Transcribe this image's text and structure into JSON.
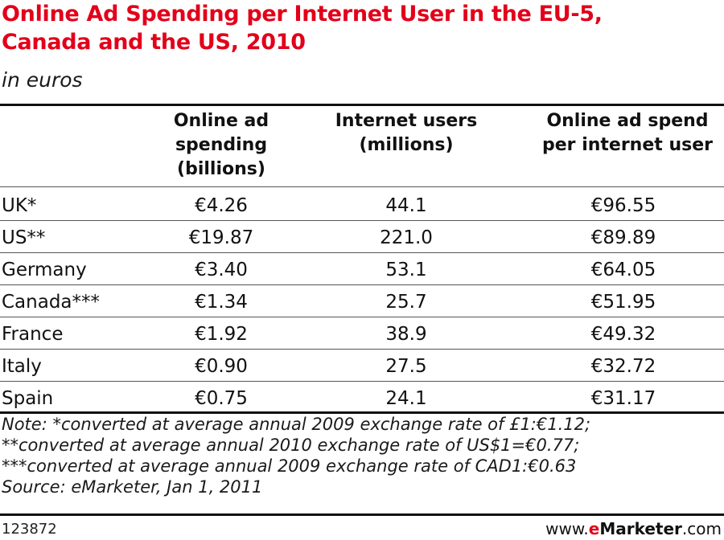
{
  "header": {
    "title_line1": "Online Ad Spending per Internet User in the EU-5,",
    "title_line2": "Canada and the US, 2010",
    "subtitle": "in euros"
  },
  "chart_data": {
    "type": "table",
    "title": "Online Ad Spending per Internet User in the EU-5, Canada and the US, 2010",
    "subtitle": "in euros",
    "columns": [
      {
        "lines": [
          "Online ad",
          "spending",
          "(billions)"
        ]
      },
      {
        "lines": [
          "Internet users",
          "(millions)"
        ]
      },
      {
        "lines": [
          "Online ad spend",
          "per internet user"
        ]
      }
    ],
    "rows": [
      {
        "label": "UK*",
        "values": [
          "€4.26",
          "44.1",
          "€96.55"
        ]
      },
      {
        "label": "US**",
        "values": [
          "€19.87",
          "221.0",
          "€89.89"
        ]
      },
      {
        "label": "Germany",
        "values": [
          "€3.40",
          "53.1",
          "€64.05"
        ]
      },
      {
        "label": "Canada***",
        "values": [
          "€1.34",
          "25.7",
          "€51.95"
        ]
      },
      {
        "label": "France",
        "values": [
          "€1.92",
          "38.9",
          "€49.32"
        ]
      },
      {
        "label": "Italy",
        "values": [
          "€0.90",
          "27.5",
          "€32.72"
        ]
      },
      {
        "label": "Spain",
        "values": [
          "€0.75",
          "24.1",
          "€31.17"
        ]
      }
    ]
  },
  "notes": [
    "Note: *converted at average annual 2009 exchange rate of £1:€1.12;",
    "**converted at average annual 2010 exchange rate of US$1=€0.77;",
    "***converted at average annual 2009 exchange rate of CAD1:€0.63",
    "Source: eMarketer, Jan 1, 2011"
  ],
  "footer": {
    "id": "123872",
    "brand_prefix": "www.",
    "brand_e": "e",
    "brand_main": "Marketer",
    "brand_suffix": ".com"
  }
}
